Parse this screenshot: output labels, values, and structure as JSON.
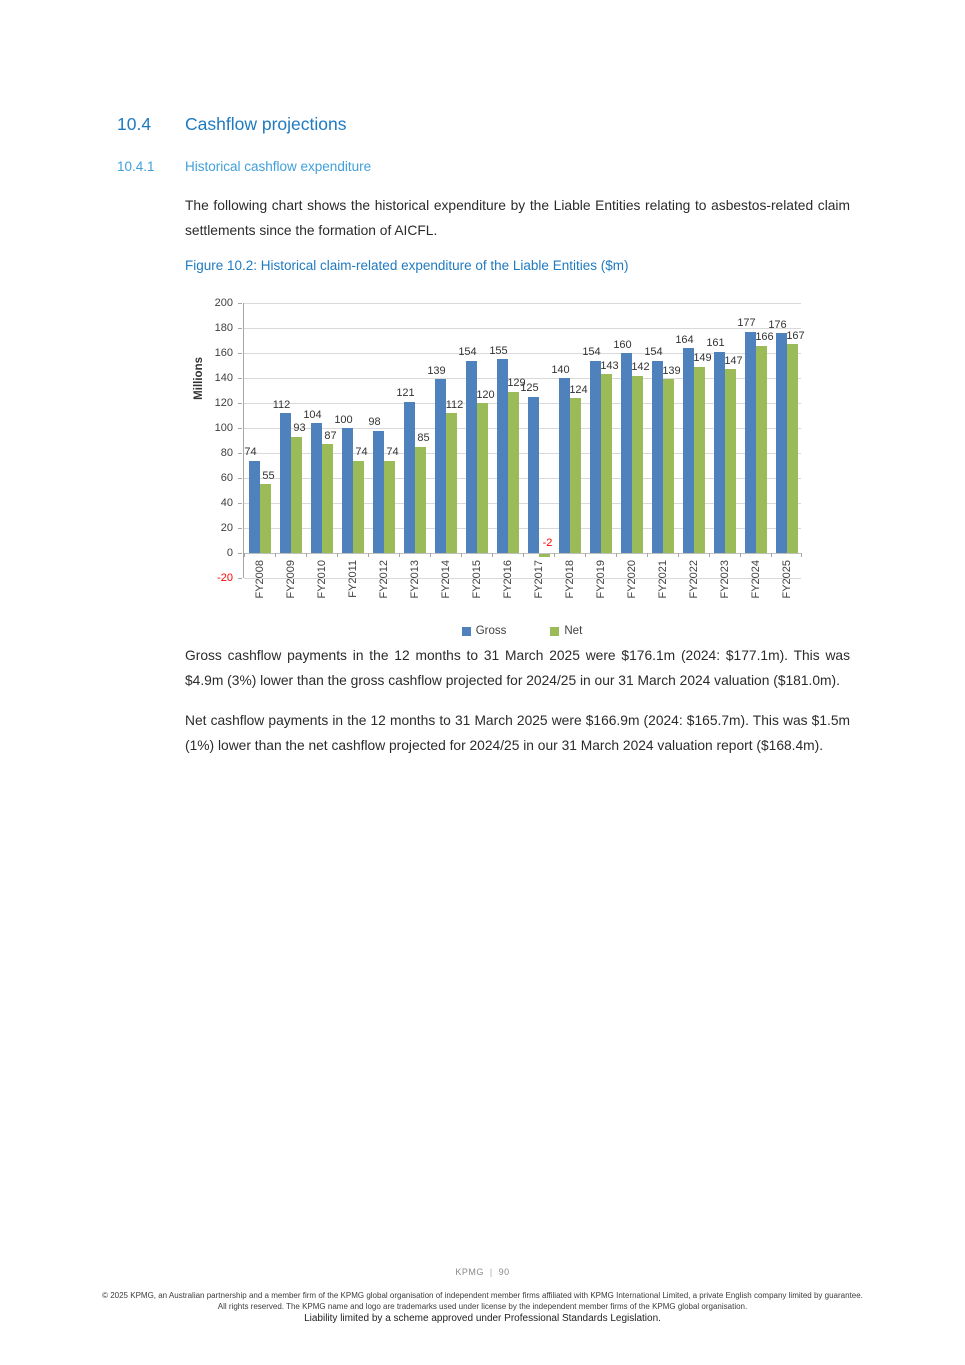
{
  "colors": {
    "section_heading_blue": "#1F7AC0",
    "subsection_heading_blue": "#3FA0DB",
    "figure_caption_blue": "#1F7AC0",
    "gross_bar_blue": "#4F81BD",
    "net_bar_green": "#9BBB59",
    "negative_label_red": "#FF0000",
    "gridline_gray": "#D9D9D9"
  },
  "document": {
    "section": {
      "number": "10.4",
      "title": "Cashflow projections"
    },
    "subsection": {
      "number": "10.4.1",
      "title": "Historical cashflow expenditure"
    },
    "intro_paragraph": "The following chart shows the historical expenditure by the Liable Entities relating to asbestos-related claim settlements since the formation of AICFL.",
    "figure_caption": "Figure 10.2: Historical claim-related expenditure of the Liable Entities ($m)",
    "body_paragraphs": [
      "Gross cashflow payments in the 12 months to 31 March 2025 were $176.1m (2024: $177.1m). This was $4.9m (3%) lower than the gross cashflow projected for 2024/25 in our 31 March 2024 valuation ($181.0m).",
      "Net cashflow payments in the 12 months to 31 March 2025 were $166.9m (2024: $165.7m). This was $1.5m (1%) lower than the net cashflow projected for 2024/25 in our 31 March 2024 valuation report ($168.4m)."
    ],
    "footer": {
      "brand": "KPMG",
      "page_number": "90",
      "legal": "© 2025 KPMG, an Australian partnership and a member firm of the KPMG global organisation of independent member firms affiliated with KPMG International Limited, a private English company limited by guarantee. All rights reserved. The KPMG name and logo are trademarks used under license by the independent member firms of the KPMG global organisation.",
      "liability": "Liability limited by a scheme approved under Professional Standards Legislation."
    }
  },
  "chart_data": {
    "type": "bar",
    "title": "",
    "xlabel": "",
    "ylabel": "Millions",
    "ylim": [
      -20,
      200
    ],
    "ytick_step": 20,
    "grid": true,
    "legend_position": "bottom",
    "negative_label_color": "#FF0000",
    "categories": [
      "FY2008",
      "FY2009",
      "FY2010",
      "FY2011",
      "FY2012",
      "FY2013",
      "FY2014",
      "FY2015",
      "FY2016",
      "FY2017",
      "FY2018",
      "FY2019",
      "FY2020",
      "FY2021",
      "FY2022",
      "FY2023",
      "FY2024",
      "FY2025"
    ],
    "series": [
      {
        "name": "Gross",
        "color": "#4F81BD",
        "values": [
          74,
          112,
          104,
          100,
          98,
          121,
          139,
          154,
          155,
          125,
          140,
          154,
          160,
          154,
          164,
          161,
          177,
          176
        ]
      },
      {
        "name": "Net",
        "color": "#9BBB59",
        "values": [
          55,
          93,
          87,
          74,
          74,
          85,
          112,
          120,
          129,
          -2,
          124,
          143,
          142,
          139,
          149,
          147,
          166,
          167
        ]
      }
    ]
  }
}
